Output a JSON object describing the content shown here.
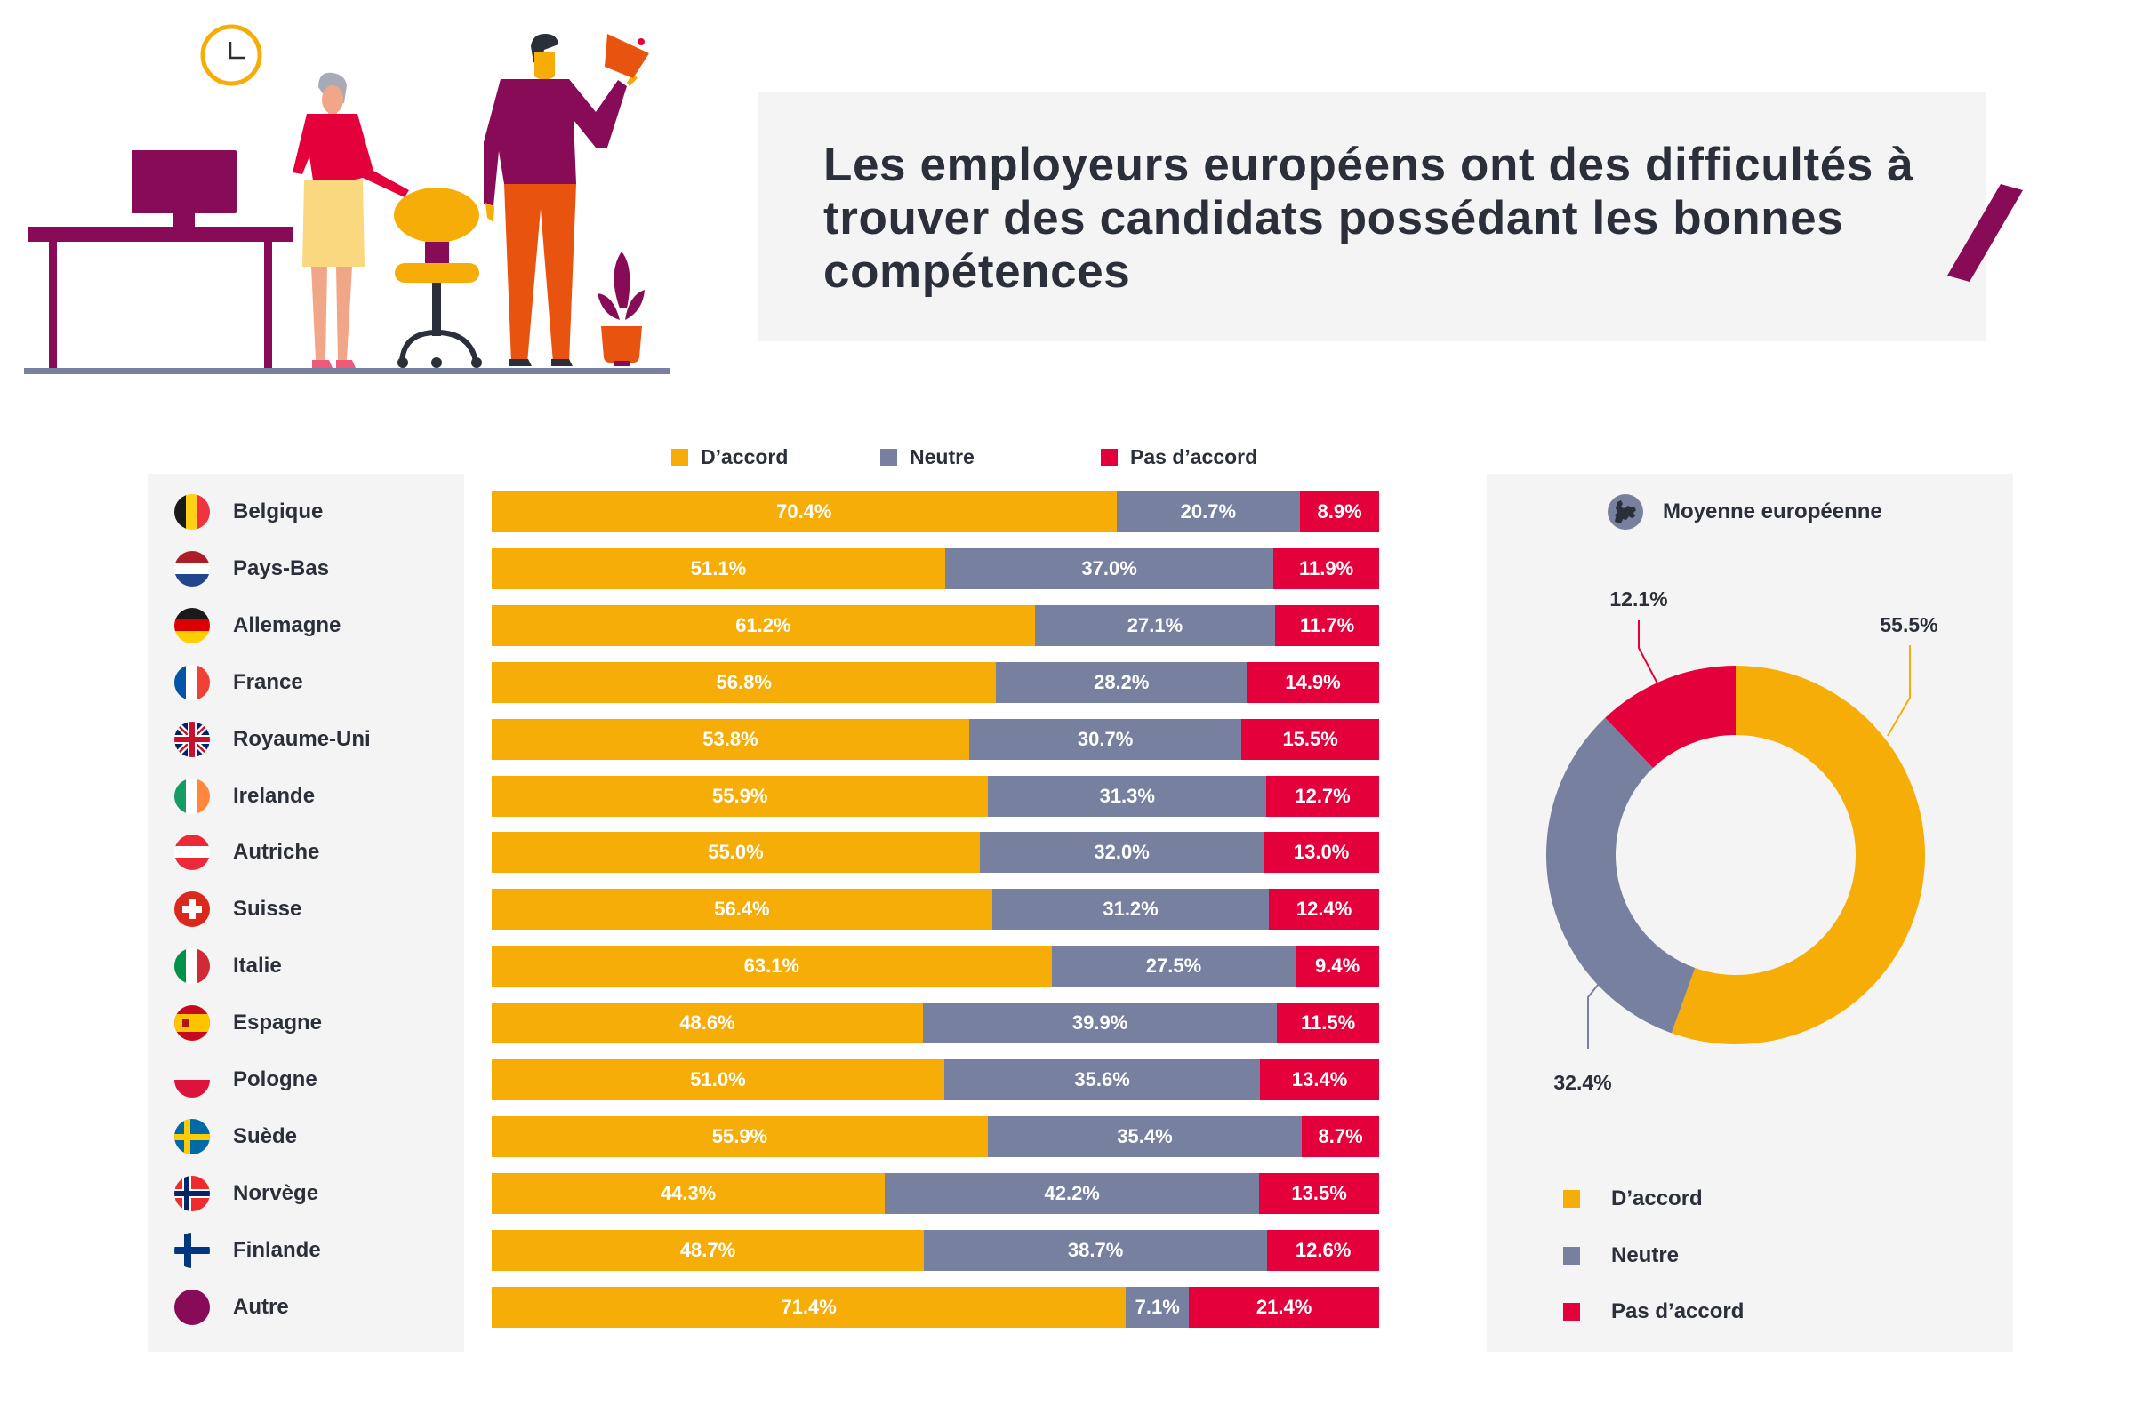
{
  "title": "Les employeurs européens ont des difficultés à trouver des candidats possédant les bonnes compétences",
  "colors": {
    "agree": "#f6ad07",
    "neutral": "#7880a0",
    "disagree": "#e4003b",
    "brand_purple": "#870b57",
    "text": "#2b2f3a",
    "panel_bg": "#f4f4f4"
  },
  "legend": [
    {
      "key": "agree",
      "label": "D’accord"
    },
    {
      "key": "neutral",
      "label": "Neutre"
    },
    {
      "key": "disagree",
      "label": "Pas d’accord"
    }
  ],
  "avg_panel": {
    "title": "Moyenne européenne",
    "icon": "europe-globe-icon"
  },
  "chart_data": [
    {
      "type": "bar",
      "orientation": "horizontal",
      "stacked": true,
      "percent_stacked": true,
      "title": "Les employeurs européens ont des difficultés à trouver des candidats possédant les bonnes compétences",
      "legend_position": "top",
      "categories": [
        "Belgique",
        "Pays-Bas",
        "Allemagne",
        "France",
        "Royaume-Uni",
        "Irelande",
        "Autriche",
        "Suisse",
        "Italie",
        "Espagne",
        "Pologne",
        "Suède",
        "Norvège",
        "Finlande",
        "Autre"
      ],
      "flags": [
        "belgium",
        "netherlands",
        "germany",
        "france",
        "united-kingdom",
        "ireland",
        "austria",
        "switzerland",
        "italy",
        "spain",
        "poland",
        "sweden",
        "norway",
        "finland",
        "other"
      ],
      "series": [
        {
          "name": "D’accord",
          "key": "agree",
          "values": [
            70.4,
            51.1,
            61.2,
            56.8,
            53.8,
            55.9,
            55.0,
            56.4,
            63.1,
            48.6,
            51.0,
            55.9,
            44.3,
            48.7,
            71.4
          ]
        },
        {
          "name": "Neutre",
          "key": "neutral",
          "values": [
            20.7,
            37.0,
            27.1,
            28.2,
            30.7,
            31.3,
            32.0,
            31.2,
            27.5,
            39.9,
            35.6,
            35.4,
            42.2,
            38.7,
            7.1
          ]
        },
        {
          "name": "Pas d’accord",
          "key": "disagree",
          "values": [
            8.9,
            11.9,
            11.7,
            14.9,
            15.5,
            12.7,
            13.0,
            12.4,
            9.4,
            11.5,
            13.4,
            8.7,
            13.5,
            12.6,
            21.4
          ]
        }
      ],
      "labels": {
        "D’accord": [
          "70.4%",
          "51.1%",
          "61.2%",
          "56.8%",
          "53.8%",
          "55.9%",
          "55.0%",
          "56.4%",
          "63.1%",
          "48.6%",
          "51.0%",
          "55.9%",
          "44.3%",
          "48.7%",
          "71.4%"
        ],
        "Neutre": [
          "20.7%",
          "37.0%",
          "27.1%",
          "28.2%",
          "30.7%",
          "31.3%",
          "32.0%",
          "31.2%",
          "27.5%",
          "39.9%",
          "35.6%",
          "35.4%",
          "42.2%",
          "38.7%",
          "7.1%"
        ],
        "Pas d’accord": [
          "8.9%",
          "11.9%",
          "11.7%",
          "14.9%",
          "15.5%",
          "12.7%",
          "13.0%",
          "12.4%",
          "9.4%",
          "11.5%",
          "13.4%",
          "8.7%",
          "13.5%",
          "12.6%",
          "21.4%"
        ]
      },
      "xlim": [
        0,
        100
      ],
      "grid": false
    },
    {
      "type": "pie",
      "donut": true,
      "title": "Moyenne européenne",
      "categories": [
        "D’accord",
        "Neutre",
        "Pas d’accord"
      ],
      "values": [
        55.5,
        32.4,
        12.1
      ],
      "labels": [
        "55.5%",
        "32.4%",
        "12.1%"
      ],
      "start": "12 o'clock",
      "direction": "clockwise",
      "legend_position": "bottom-left"
    }
  ]
}
